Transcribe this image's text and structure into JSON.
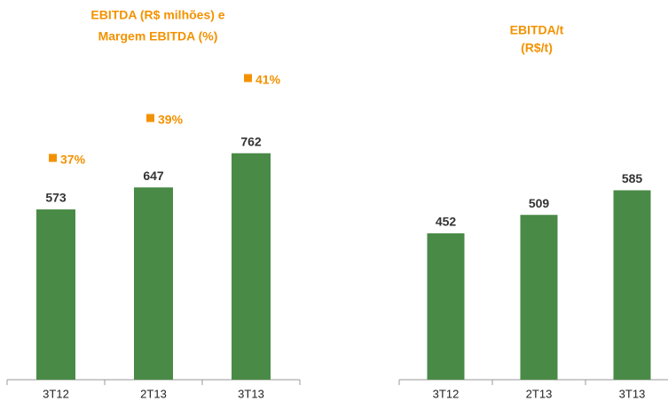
{
  "chart_data": [
    {
      "type": "bar",
      "title": [
        "EBITDA (R$ milhões) e",
        "Margem EBITDA (%)"
      ],
      "categories": [
        "3T12",
        "2T13",
        "3T13"
      ],
      "series": [
        {
          "color": "#4a8a47",
          "values": [
            573,
            647,
            762
          ]
        },
        {
          "color": "#f39200",
          "values": [
            37,
            39,
            41
          ],
          "value_labels": [
            "37%",
            "39%",
            "41%"
          ],
          "axis": "y2"
        }
      ]
    },
    {
      "type": "bar",
      "title": [
        "EBITDA/t",
        "(R$/t)"
      ],
      "categories": [
        "3T12",
        "2T13",
        "3T13"
      ],
      "series": [
        {
          "color": "#4a8a47",
          "values": [
            452,
            509,
            585
          ]
        }
      ]
    }
  ]
}
